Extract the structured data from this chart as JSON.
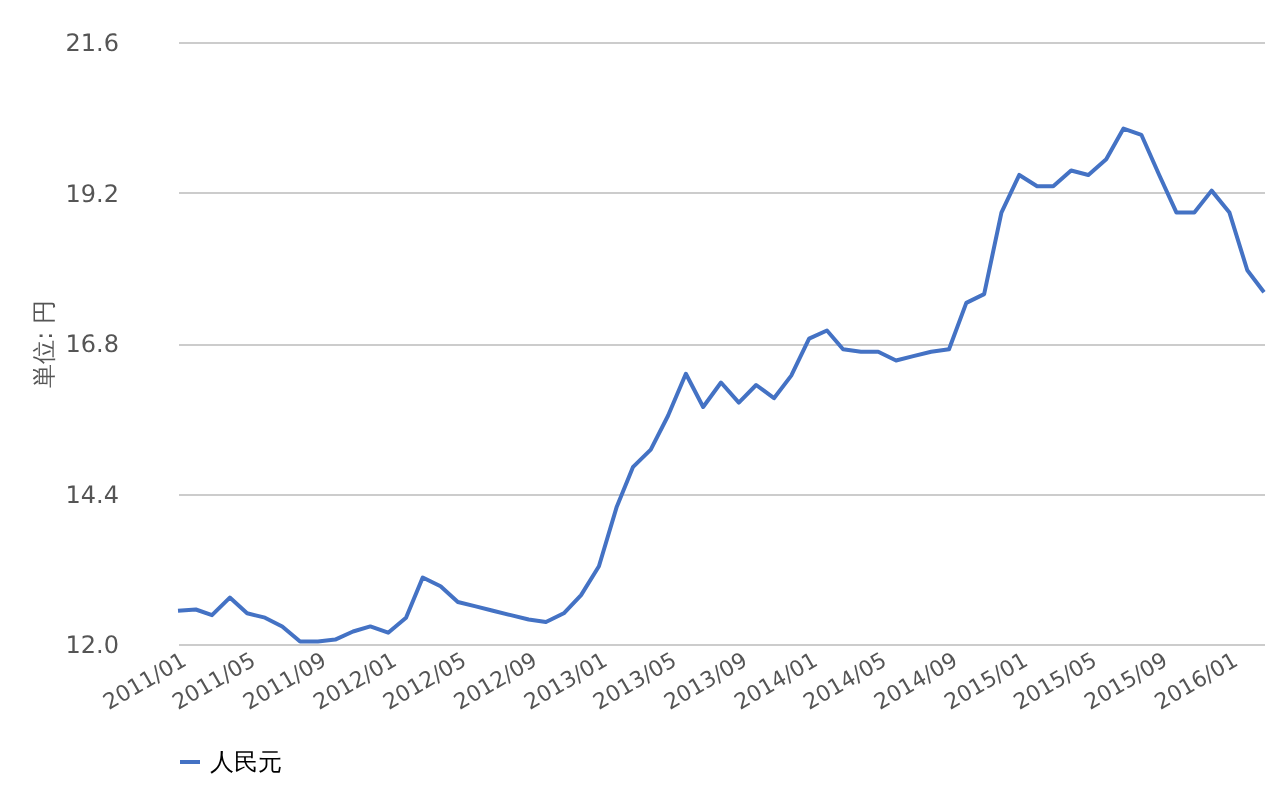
{
  "chart_data": {
    "type": "line",
    "ylabel": "単位: 円",
    "legend": "bottom",
    "grid": "y",
    "marker": "none",
    "line_style": "solid",
    "x": [
      "2011-01",
      "2011-02",
      "2011-03",
      "2011-04",
      "2011-05",
      "2011-06",
      "2011-07",
      "2011-08",
      "2011-09",
      "2011-10",
      "2011-11",
      "2011-12",
      "2012-01",
      "2012-02",
      "2012-03",
      "2012-04",
      "2012-05",
      "2012-06",
      "2012-07",
      "2012-08",
      "2012-09",
      "2012-10",
      "2012-11",
      "2012-12",
      "2013-01",
      "2013-02",
      "2013-03",
      "2013-04",
      "2013-05",
      "2013-06",
      "2013-07",
      "2013-08",
      "2013-09",
      "2013-10",
      "2013-11",
      "2013-12",
      "2014-01",
      "2014-02",
      "2014-03",
      "2014-04",
      "2014-05",
      "2014-06",
      "2014-07",
      "2014-08",
      "2014-09",
      "2014-10",
      "2014-11",
      "2014-12",
      "2015-01",
      "2015-02",
      "2015-03",
      "2015-04",
      "2015-05",
      "2015-06",
      "2015-07",
      "2015-08",
      "2015-09",
      "2015-10",
      "2015-11",
      "2015-12",
      "2016-01",
      "2016-02",
      "2016-03"
    ],
    "series": [
      {
        "name": "人民元",
        "color": "#4472c4",
        "values": [
          12.53,
          12.55,
          12.46,
          12.74,
          12.49,
          12.42,
          12.28,
          12.04,
          12.04,
          12.07,
          12.2,
          12.28,
          12.18,
          12.42,
          13.06,
          12.92,
          12.67,
          12.6,
          12.53,
          12.46,
          12.39,
          12.35,
          12.49,
          12.78,
          13.24,
          14.19,
          14.82,
          15.1,
          15.64,
          16.31,
          15.78,
          16.17,
          15.85,
          16.13,
          15.92,
          16.28,
          16.87,
          17.0,
          16.7,
          16.66,
          16.66,
          16.52,
          16.59,
          16.66,
          16.7,
          17.44,
          17.58,
          18.88,
          19.48,
          19.3,
          19.3,
          19.55,
          19.48,
          19.73,
          20.22,
          20.12,
          19.48,
          18.88,
          18.88,
          19.23,
          18.88,
          17.96,
          17.61
        ]
      }
    ],
    "xlim": [
      "2011-01",
      "2016-03"
    ],
    "xticks": [
      {
        "value": "2011-01",
        "label": "2011/01"
      },
      {
        "value": "2011-05",
        "label": "2011/05"
      },
      {
        "value": "2011-09",
        "label": "2011/09"
      },
      {
        "value": "2012-01",
        "label": "2012/01"
      },
      {
        "value": "2012-05",
        "label": "2012/05"
      },
      {
        "value": "2012-09",
        "label": "2012/09"
      },
      {
        "value": "2013-01",
        "label": "2013/01"
      },
      {
        "value": "2013-05",
        "label": "2013/05"
      },
      {
        "value": "2013-09",
        "label": "2013/09"
      },
      {
        "value": "2014-01",
        "label": "2014/01"
      },
      {
        "value": "2014-05",
        "label": "2014/05"
      },
      {
        "value": "2014-09",
        "label": "2014/09"
      },
      {
        "value": "2015-01",
        "label": "2015/01"
      },
      {
        "value": "2015-05",
        "label": "2015/05"
      },
      {
        "value": "2015-09",
        "label": "2015/09"
      },
      {
        "value": "2016-01",
        "label": "2016/01"
      }
    ],
    "ylim": [
      12.0,
      21.6
    ],
    "yticks": [
      {
        "value": 12.0,
        "label": "12.0"
      },
      {
        "value": 14.4,
        "label": "14.4"
      },
      {
        "value": 16.8,
        "label": "16.8"
      },
      {
        "value": 19.2,
        "label": "19.2"
      },
      {
        "value": 21.6,
        "label": "21.6"
      }
    ]
  }
}
